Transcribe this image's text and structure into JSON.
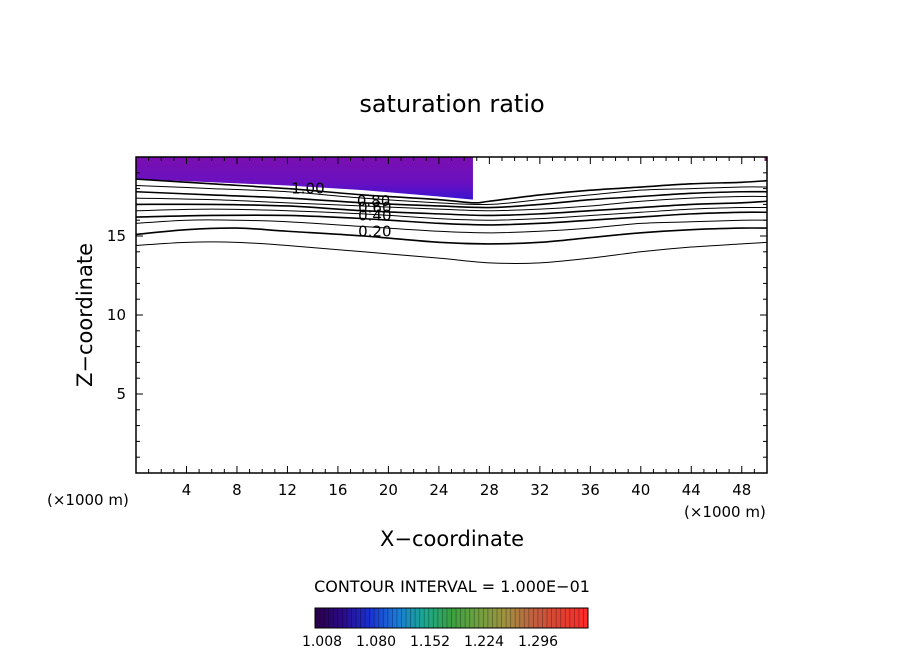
{
  "chart_data": {
    "type": "contour",
    "title": "saturation ratio",
    "xlabel": "X−coordinate",
    "ylabel": "Z−coordinate",
    "x_unit_label": "(×1000 m)",
    "y_unit_label": "(×1000 m)",
    "xlim": [
      0,
      50
    ],
    "ylim": [
      0,
      20
    ],
    "x_ticks": [
      "4",
      "8",
      "12",
      "16",
      "20",
      "24",
      "28",
      "32",
      "36",
      "40",
      "44",
      "48"
    ],
    "y_ticks": [
      "5",
      "10",
      "15"
    ],
    "contour_interval_label": "CONTOUR INTERVAL = 1.000E−01",
    "contour_labels": [
      {
        "text": "1.00",
        "x": 12.3,
        "z": 18.0
      },
      {
        "text": "0.80",
        "x": 17.5,
        "z": 17.2
      },
      {
        "text": "0.60",
        "x": 17.6,
        "z": 16.8
      },
      {
        "text": "0.40",
        "x": 17.6,
        "z": 16.3
      },
      {
        "text": "0.20",
        "x": 17.6,
        "z": 15.3
      }
    ],
    "contours": [
      {
        "level": 1.0,
        "points": [
          [
            0,
            18.6
          ],
          [
            6,
            18.3
          ],
          [
            12,
            18.0
          ],
          [
            18,
            17.6
          ],
          [
            24,
            17.3
          ],
          [
            26.7,
            17.1
          ],
          [
            28,
            17.2
          ],
          [
            32,
            17.6
          ],
          [
            36,
            17.9
          ],
          [
            40,
            18.1
          ],
          [
            44,
            18.3
          ],
          [
            48,
            18.4
          ],
          [
            50,
            18.5
          ]
        ]
      },
      {
        "level": 0.9,
        "points": [
          [
            0,
            18.2
          ],
          [
            6,
            18.0
          ],
          [
            12,
            17.8
          ],
          [
            18,
            17.4
          ],
          [
            24,
            17.1
          ],
          [
            28,
            17.0
          ],
          [
            32,
            17.3
          ],
          [
            36,
            17.6
          ],
          [
            40,
            17.9
          ],
          [
            44,
            18.0
          ],
          [
            48,
            18.1
          ],
          [
            50,
            18.1
          ]
        ]
      },
      {
        "level": 0.8,
        "points": [
          [
            0,
            17.8
          ],
          [
            6,
            17.6
          ],
          [
            12,
            17.4
          ],
          [
            18,
            17.1
          ],
          [
            24,
            16.9
          ],
          [
            28,
            16.8
          ],
          [
            32,
            17.0
          ],
          [
            36,
            17.3
          ],
          [
            40,
            17.5
          ],
          [
            44,
            17.7
          ],
          [
            48,
            17.8
          ],
          [
            50,
            17.8
          ]
        ]
      },
      {
        "level": 0.7,
        "points": [
          [
            0,
            17.4
          ],
          [
            6,
            17.3
          ],
          [
            12,
            17.1
          ],
          [
            18,
            16.9
          ],
          [
            24,
            16.7
          ],
          [
            28,
            16.6
          ],
          [
            32,
            16.7
          ],
          [
            36,
            16.9
          ],
          [
            40,
            17.2
          ],
          [
            44,
            17.4
          ],
          [
            48,
            17.5
          ],
          [
            50,
            17.5
          ]
        ]
      },
      {
        "level": 0.6,
        "points": [
          [
            0,
            17.0
          ],
          [
            6,
            17.0
          ],
          [
            12,
            16.9
          ],
          [
            18,
            16.6
          ],
          [
            24,
            16.4
          ],
          [
            28,
            16.3
          ],
          [
            32,
            16.4
          ],
          [
            36,
            16.6
          ],
          [
            40,
            16.8
          ],
          [
            44,
            17.0
          ],
          [
            48,
            17.1
          ],
          [
            50,
            17.2
          ]
        ]
      },
      {
        "level": 0.5,
        "points": [
          [
            0,
            16.6
          ],
          [
            6,
            16.7
          ],
          [
            12,
            16.6
          ],
          [
            18,
            16.4
          ],
          [
            24,
            16.1
          ],
          [
            28,
            16.0
          ],
          [
            32,
            16.1
          ],
          [
            36,
            16.3
          ],
          [
            40,
            16.5
          ],
          [
            44,
            16.7
          ],
          [
            48,
            16.8
          ],
          [
            50,
            16.8
          ]
        ]
      },
      {
        "level": 0.4,
        "points": [
          [
            0,
            16.2
          ],
          [
            6,
            16.3
          ],
          [
            12,
            16.3
          ],
          [
            18,
            16.1
          ],
          [
            24,
            15.8
          ],
          [
            28,
            15.7
          ],
          [
            32,
            15.8
          ],
          [
            36,
            16.0
          ],
          [
            40,
            16.2
          ],
          [
            44,
            16.4
          ],
          [
            48,
            16.5
          ],
          [
            50,
            16.5
          ]
        ]
      },
      {
        "level": 0.3,
        "points": [
          [
            0,
            15.8
          ],
          [
            4,
            16.0
          ],
          [
            8,
            16.0
          ],
          [
            12,
            15.9
          ],
          [
            18,
            15.6
          ],
          [
            24,
            15.3
          ],
          [
            28,
            15.2
          ],
          [
            32,
            15.3
          ],
          [
            36,
            15.5
          ],
          [
            40,
            15.8
          ],
          [
            44,
            15.9
          ],
          [
            48,
            16.0
          ],
          [
            50,
            16.0
          ]
        ]
      },
      {
        "level": 0.2,
        "points": [
          [
            0,
            15.1
          ],
          [
            4,
            15.4
          ],
          [
            8,
            15.5
          ],
          [
            12,
            15.3
          ],
          [
            18,
            15.0
          ],
          [
            24,
            14.6
          ],
          [
            28,
            14.5
          ],
          [
            32,
            14.6
          ],
          [
            36,
            14.9
          ],
          [
            40,
            15.2
          ],
          [
            44,
            15.4
          ],
          [
            48,
            15.5
          ],
          [
            50,
            15.5
          ]
        ]
      },
      {
        "level": 0.1,
        "points": [
          [
            0,
            14.4
          ],
          [
            4,
            14.6
          ],
          [
            8,
            14.6
          ],
          [
            12,
            14.4
          ],
          [
            18,
            14.0
          ],
          [
            24,
            13.6
          ],
          [
            28,
            13.3
          ],
          [
            32,
            13.3
          ],
          [
            36,
            13.6
          ],
          [
            40,
            14.0
          ],
          [
            44,
            14.3
          ],
          [
            48,
            14.5
          ],
          [
            50,
            14.6
          ]
        ]
      }
    ],
    "supersaturated_region": {
      "shade_range": [
        1.008,
        1.296
      ],
      "boundary": [
        [
          0,
          20
        ],
        [
          26.7,
          20
        ],
        [
          26.7,
          17.3
        ],
        [
          24,
          17.5
        ],
        [
          18,
          17.9
        ],
        [
          12,
          18.2
        ],
        [
          6,
          18.4
        ],
        [
          0,
          18.6
        ]
      ]
    },
    "colorbar": {
      "tick_labels": [
        "1.008",
        "1.080",
        "1.152",
        "1.224",
        "1.296"
      ],
      "colors": [
        "#2a0045",
        "#2a0a8a",
        "#1a30d0",
        "#1a7ad8",
        "#1aa890",
        "#3aa040",
        "#70a040",
        "#a09040",
        "#c06040",
        "#e04030",
        "#ff2a2a"
      ]
    }
  }
}
